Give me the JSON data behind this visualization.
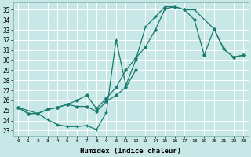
{
  "title": "",
  "xlabel": "Humidex (Indice chaleur)",
  "background_color": "#c8e8e8",
  "grid_color": "#ffffff",
  "line_color": "#1a7a6e",
  "xlim": [
    -0.5,
    23.5
  ],
  "ylim": [
    22.5,
    35.7
  ],
  "xticks": [
    0,
    1,
    2,
    3,
    4,
    5,
    6,
    7,
    8,
    9,
    10,
    11,
    12,
    13,
    14,
    15,
    16,
    17,
    18,
    19,
    20,
    21,
    22,
    23
  ],
  "yticks": [
    23,
    24,
    25,
    26,
    27,
    28,
    29,
    30,
    31,
    32,
    33,
    34,
    35
  ],
  "series1_x": [
    0,
    1,
    2,
    3,
    4,
    5,
    6,
    7,
    8,
    9,
    10,
    11,
    12,
    13,
    14,
    15,
    16,
    17,
    18,
    20,
    21,
    22,
    23
  ],
  "series1_y": [
    25.3,
    24.7,
    24.7,
    24.1,
    23.6,
    23.4,
    23.4,
    23.5,
    23.1,
    24.8,
    32.0,
    27.5,
    30.0,
    33.3,
    34.3,
    35.3,
    35.3,
    35.0,
    35.0,
    33.1,
    31.1,
    30.3,
    30.5
  ],
  "series2_x": [
    0,
    1,
    2,
    3,
    4,
    5,
    6,
    7,
    8,
    9,
    10,
    11,
    12
  ],
  "series2_y": [
    25.3,
    24.7,
    24.7,
    25.1,
    25.3,
    25.6,
    25.4,
    25.4,
    24.9,
    25.9,
    26.5,
    27.3,
    29.0
  ],
  "series3_x": [
    0,
    2,
    3,
    4,
    5,
    6,
    7,
    8,
    9,
    10,
    11,
    12,
    13,
    14,
    15,
    16,
    17,
    18,
    19,
    20,
    21,
    22,
    23
  ],
  "series3_y": [
    25.3,
    24.7,
    25.1,
    25.3,
    25.6,
    26.0,
    26.5,
    25.2,
    26.2,
    27.3,
    29.0,
    30.2,
    31.3,
    33.0,
    35.1,
    35.3,
    35.0,
    34.0,
    30.5,
    33.1,
    31.1,
    30.3,
    30.5
  ]
}
